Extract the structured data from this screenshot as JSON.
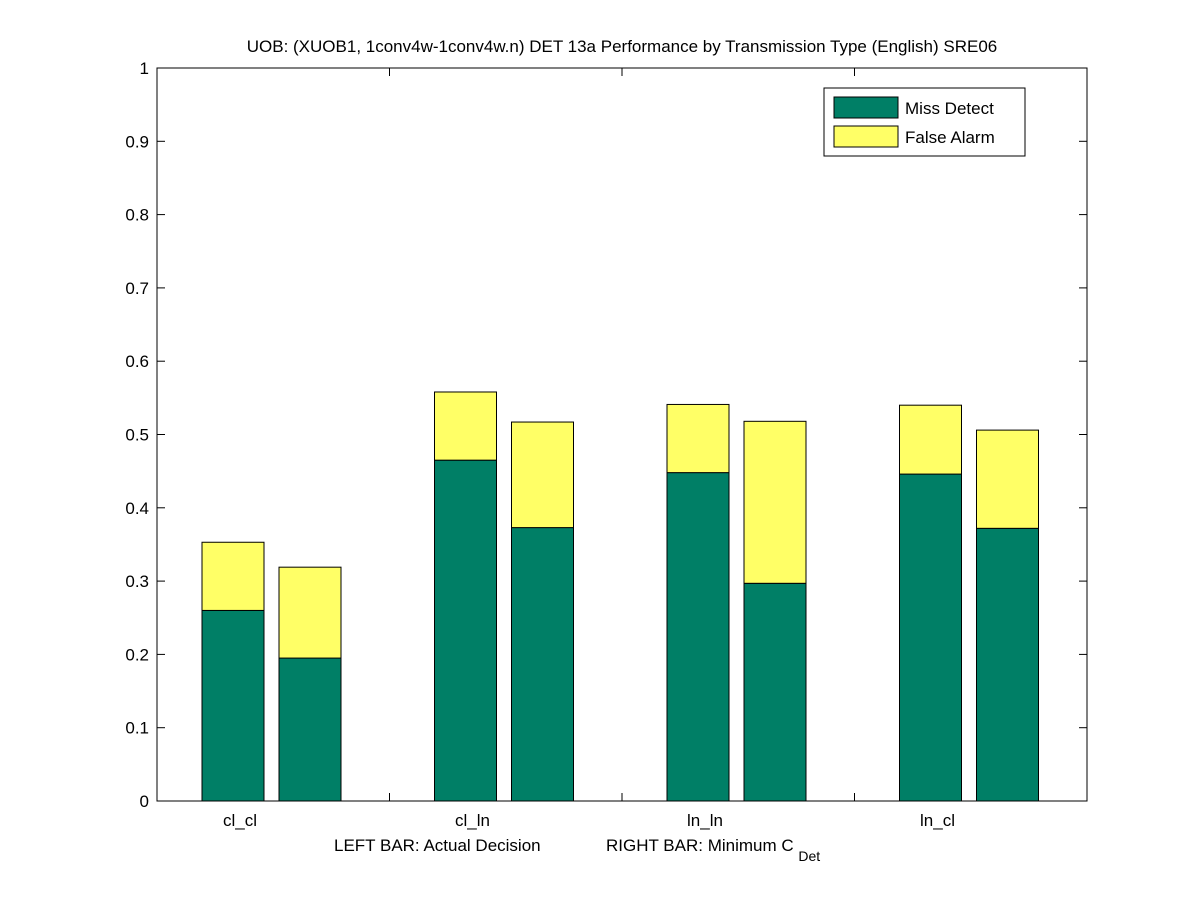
{
  "chart_data": {
    "type": "bar",
    "stacked": true,
    "title": "UOB: (XUOB1, 1conv4w-1conv4w.n) DET 13a Performance by Transmission Type (English) SRE06",
    "xlabel": {
      "left_part": "LEFT BAR: Actual Decision",
      "right_part": "RIGHT BAR: Minimum C",
      "right_subscript": "Det"
    },
    "ylabel": "",
    "ylim": [
      0,
      1
    ],
    "yticks": [
      "0",
      "0.1",
      "0.2",
      "0.3",
      "0.4",
      "0.5",
      "0.6",
      "0.7",
      "0.8",
      "0.9",
      "1"
    ],
    "categories": [
      "cl_cl",
      "cl_ln",
      "ln_ln",
      "ln_cl"
    ],
    "bars_per_category": [
      "Actual Decision",
      "Minimum C_Det"
    ],
    "series": [
      {
        "name": "Miss Detect",
        "color": "#007f66",
        "actual": [
          0.26,
          0.465,
          0.448,
          0.446
        ],
        "minimum": [
          0.195,
          0.373,
          0.297,
          0.372
        ]
      },
      {
        "name": "False Alarm",
        "color": "#ffff66",
        "actual": [
          0.093,
          0.093,
          0.093,
          0.094
        ],
        "minimum": [
          0.124,
          0.144,
          0.221,
          0.134
        ]
      }
    ],
    "totals": {
      "actual": [
        0.353,
        0.558,
        0.541,
        0.54
      ],
      "minimum": [
        0.319,
        0.517,
        0.518,
        0.506
      ]
    },
    "legend_position": "top-right",
    "grid": false
  }
}
